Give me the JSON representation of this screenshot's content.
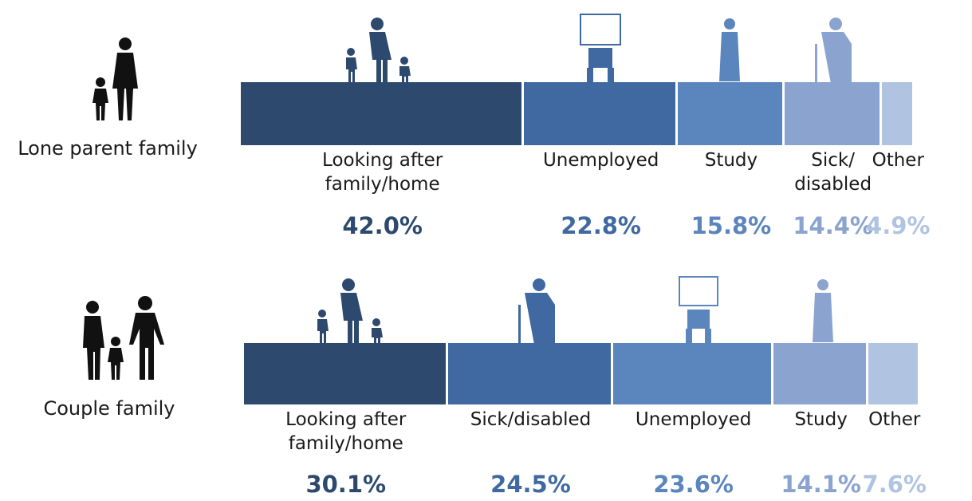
{
  "chart_data": [
    {
      "type": "stacked-bar",
      "group": "Lone parent family",
      "categories": [
        "Looking after\nfamily/home",
        "Unemployed",
        "Study",
        "Sick/\ndisabled",
        "Other"
      ],
      "values": [
        42.0,
        22.8,
        15.8,
        14.4,
        4.9
      ],
      "value_labels": [
        "42.0%",
        "22.8%",
        "15.8%",
        "14.4%",
        "4.9%"
      ],
      "colors": [
        "#2d4a6e",
        "#3f69a0",
        "#5b85bd",
        "#8aa4cf",
        "#b0c4e2"
      ]
    },
    {
      "type": "stacked-bar",
      "group": "Couple family",
      "categories": [
        "Looking after\nfamily/home",
        "Sick/disabled",
        "Unemployed",
        "Study",
        "Other"
      ],
      "values": [
        30.1,
        24.5,
        23.6,
        14.1,
        7.6
      ],
      "value_labels": [
        "30.1%",
        "24.5%",
        "23.6%",
        "14.1%",
        "7.6%"
      ],
      "colors": [
        "#2d4a6e",
        "#3f69a0",
        "#5b85bd",
        "#8aa4cf",
        "#b0c4e2"
      ]
    }
  ]
}
